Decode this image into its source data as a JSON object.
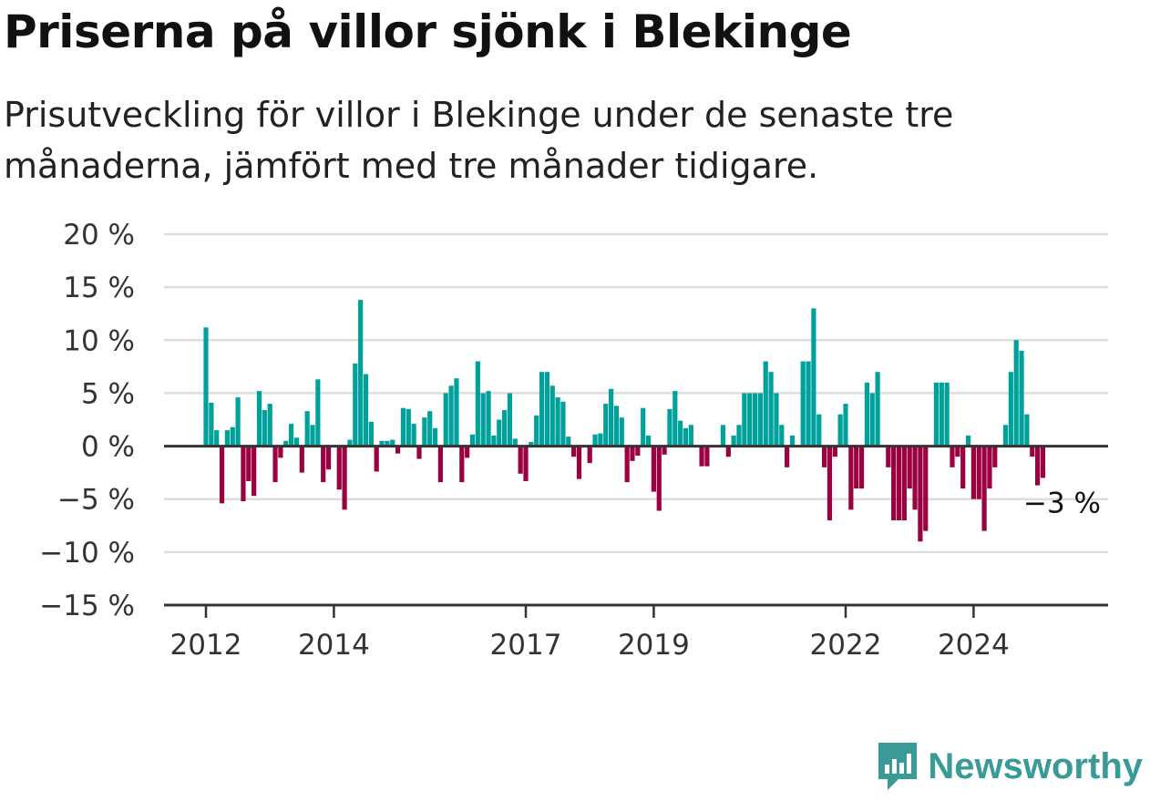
{
  "header": {
    "title": "Priserna på villor sjönk i Blekinge",
    "subtitle": "Prisutveckling för villor i Blekinge under de senaste tre månaderna, jämfört med tre månader tidigare."
  },
  "brand": {
    "name": "Newsworthy",
    "icon": "newsworthy-logo-icon",
    "color": "#3a9b96"
  },
  "colors": {
    "positive": "#00a19a",
    "negative": "#9b0041",
    "grid": "#dddddd",
    "axis": "#333333"
  },
  "chart_data": {
    "type": "bar",
    "title": "Priserna på villor sjönk i Blekinge",
    "subtitle": "Prisutveckling för villor i Blekinge under de senaste tre månaderna, jämfört med tre månader tidigare.",
    "unit": "%",
    "ylim": [
      -15,
      20
    ],
    "yticks": [
      20,
      15,
      10,
      5,
      0,
      -5,
      -10,
      -15
    ],
    "ytick_labels": [
      "20 %",
      "15 %",
      "10 %",
      "5 %",
      "0 %",
      "−5 %",
      "−10 %",
      "−15 %"
    ],
    "xticks": [
      "2012",
      "2014",
      "2017",
      "2019",
      "2022",
      "2024"
    ],
    "grid": true,
    "start": "2012-01",
    "frequency": "monthly",
    "values": [
      11.2,
      4.1,
      1.5,
      -5.4,
      1.5,
      1.8,
      4.6,
      -5.2,
      -3.3,
      -4.7,
      5.2,
      3.4,
      4.0,
      -3.4,
      -1.1,
      0.5,
      2.1,
      0.8,
      -2.5,
      3.3,
      2.0,
      6.3,
      -3.4,
      -2.2,
      0.0,
      -4.1,
      -6.0,
      0.6,
      7.8,
      13.8,
      6.8,
      2.3,
      -2.4,
      0.5,
      0.5,
      0.6,
      -0.7,
      3.6,
      3.5,
      2.1,
      -1.2,
      2.7,
      3.3,
      1.7,
      -3.4,
      5.0,
      5.7,
      6.4,
      -3.4,
      -1.1,
      1.1,
      8.0,
      5.0,
      5.2,
      1.0,
      2.5,
      3.4,
      5.0,
      0.7,
      -2.6,
      -3.3,
      0.4,
      2.9,
      7.0,
      7.0,
      5.7,
      4.6,
      4.2,
      0.9,
      -1.0,
      -3.1,
      0.0,
      -1.6,
      1.1,
      1.2,
      4.0,
      5.4,
      3.8,
      2.7,
      -3.4,
      -1.4,
      -0.9,
      3.6,
      1.0,
      -4.3,
      -6.1,
      -0.8,
      3.5,
      5.2,
      2.4,
      1.7,
      2.0,
      0.0,
      -1.9,
      -1.9,
      0.0,
      0.0,
      2.0,
      -1.0,
      1.0,
      2.0,
      5.0,
      5.0,
      5.0,
      5.0,
      8.0,
      7.0,
      5.0,
      2.0,
      -2.0,
      1.0,
      0.0,
      8.0,
      8.0,
      13.0,
      3.0,
      -2.0,
      -7.0,
      -1.0,
      3.0,
      4.0,
      -6.0,
      -4.0,
      -4.0,
      6.0,
      5.0,
      7.0,
      0.0,
      -2.0,
      -7.0,
      -7.0,
      -7.0,
      -4.0,
      -6.0,
      -9.0,
      -8.0,
      0.0,
      6.0,
      6.0,
      6.0,
      -2.0,
      -1.0,
      -4.0,
      1.0,
      -5.0,
      -5.0,
      -8.0,
      -4.0,
      -2.0,
      0.0,
      2.0,
      7.0,
      10.0,
      9.0,
      3.0,
      -1.0,
      -3.7,
      -3.0
    ],
    "annotation": {
      "label": "−3 %",
      "value": -3
    }
  }
}
